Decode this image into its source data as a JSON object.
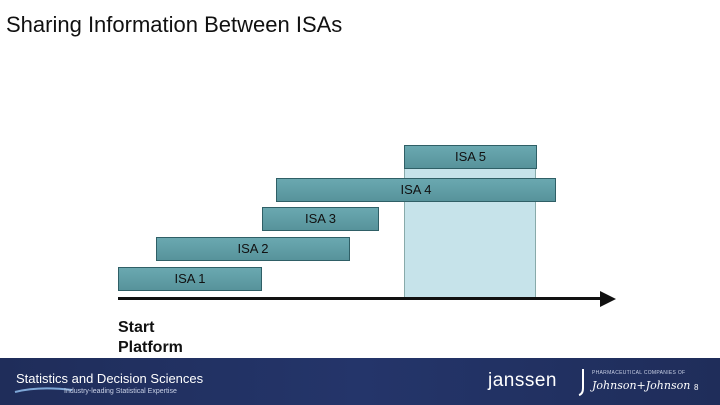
{
  "title": "Sharing Information Between ISAs",
  "bars": {
    "isa5": "ISA 5",
    "isa4": "ISA 4",
    "isa3": "ISA 3",
    "isa2": "ISA 2",
    "isa1": "ISA 1"
  },
  "start_label": {
    "line1": "Start",
    "line2": "Platform"
  },
  "footer": {
    "brand": "Statistics and Decision Sciences",
    "tagline": "Industry-leading Statistical Expertise",
    "company": "janssen",
    "pharma": "PHARMACEUTICAL COMPANIES OF",
    "parent": "Johnson+Johnson",
    "page_number": "8"
  },
  "colors": {
    "bar_fill": "#5f9ea6",
    "shade_fill": "#c6e3ea",
    "footer_bg": "#1f2d5a"
  }
}
